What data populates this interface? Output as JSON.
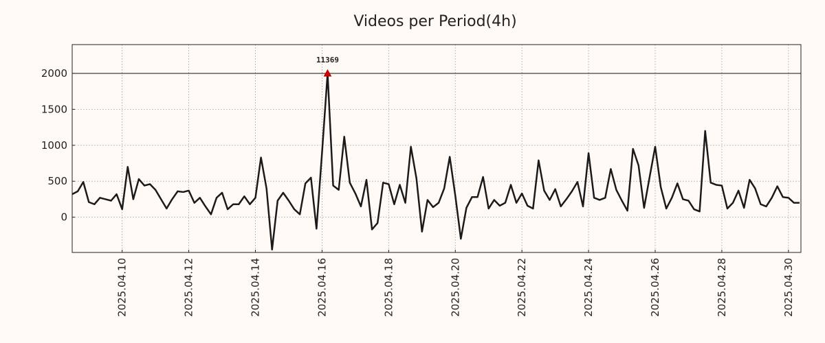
{
  "chart_data": {
    "type": "line",
    "title": "Videos per Period(4h)",
    "annotation": "11369",
    "cap_line": 2000,
    "grid": true,
    "x": [
      "2025-04-08T12:00",
      "2025-04-08T16:00",
      "2025-04-08T20:00",
      "2025-04-09T00:00",
      "2025-04-09T04:00",
      "2025-04-09T08:00",
      "2025-04-09T12:00",
      "2025-04-09T16:00",
      "2025-04-09T20:00",
      "2025-04-10T00:00",
      "2025-04-10T04:00",
      "2025-04-10T08:00",
      "2025-04-10T12:00",
      "2025-04-10T16:00",
      "2025-04-10T20:00",
      "2025-04-11T00:00",
      "2025-04-11T04:00",
      "2025-04-11T08:00",
      "2025-04-11T12:00",
      "2025-04-11T16:00",
      "2025-04-11T20:00",
      "2025-04-12T00:00",
      "2025-04-12T04:00",
      "2025-04-12T08:00",
      "2025-04-12T12:00",
      "2025-04-12T16:00",
      "2025-04-12T20:00",
      "2025-04-13T00:00",
      "2025-04-13T04:00",
      "2025-04-13T08:00",
      "2025-04-13T12:00",
      "2025-04-13T16:00",
      "2025-04-13T20:00",
      "2025-04-14T00:00",
      "2025-04-14T04:00",
      "2025-04-14T08:00",
      "2025-04-14T12:00",
      "2025-04-14T16:00",
      "2025-04-14T20:00",
      "2025-04-15T00:00",
      "2025-04-15T04:00",
      "2025-04-15T08:00",
      "2025-04-15T12:00",
      "2025-04-15T16:00",
      "2025-04-15T20:00",
      "2025-04-16T00:00",
      "2025-04-16T04:00",
      "2025-04-16T08:00",
      "2025-04-16T12:00",
      "2025-04-16T16:00",
      "2025-04-16T20:00",
      "2025-04-17T00:00",
      "2025-04-17T04:00",
      "2025-04-17T08:00",
      "2025-04-17T12:00",
      "2025-04-17T16:00",
      "2025-04-17T20:00",
      "2025-04-18T00:00",
      "2025-04-18T04:00",
      "2025-04-18T08:00",
      "2025-04-18T12:00",
      "2025-04-18T16:00",
      "2025-04-18T20:00",
      "2025-04-19T00:00",
      "2025-04-19T04:00",
      "2025-04-19T08:00",
      "2025-04-19T12:00",
      "2025-04-19T16:00",
      "2025-04-19T20:00",
      "2025-04-20T00:00",
      "2025-04-20T04:00",
      "2025-04-20T08:00",
      "2025-04-20T12:00",
      "2025-04-20T16:00",
      "2025-04-20T20:00",
      "2025-04-21T00:00",
      "2025-04-21T04:00",
      "2025-04-21T08:00",
      "2025-04-21T12:00",
      "2025-04-21T16:00",
      "2025-04-21T20:00",
      "2025-04-22T00:00",
      "2025-04-22T04:00",
      "2025-04-22T08:00",
      "2025-04-22T12:00",
      "2025-04-22T16:00",
      "2025-04-22T20:00",
      "2025-04-23T00:00",
      "2025-04-23T04:00",
      "2025-04-23T08:00",
      "2025-04-23T12:00",
      "2025-04-23T16:00",
      "2025-04-23T20:00",
      "2025-04-24T00:00",
      "2025-04-24T04:00",
      "2025-04-24T08:00",
      "2025-04-24T12:00",
      "2025-04-24T16:00",
      "2025-04-24T20:00",
      "2025-04-25T00:00",
      "2025-04-25T04:00",
      "2025-04-25T08:00",
      "2025-04-25T12:00",
      "2025-04-25T16:00",
      "2025-04-25T20:00",
      "2025-04-26T00:00",
      "2025-04-26T04:00",
      "2025-04-26T08:00",
      "2025-04-26T12:00",
      "2025-04-26T16:00",
      "2025-04-26T20:00",
      "2025-04-27T00:00",
      "2025-04-27T04:00",
      "2025-04-27T08:00",
      "2025-04-27T12:00",
      "2025-04-27T16:00",
      "2025-04-27T20:00",
      "2025-04-28T00:00",
      "2025-04-28T04:00",
      "2025-04-28T08:00",
      "2025-04-28T12:00",
      "2025-04-28T16:00",
      "2025-04-28T20:00",
      "2025-04-29T00:00",
      "2025-04-29T04:00",
      "2025-04-29T08:00",
      "2025-04-29T12:00",
      "2025-04-29T16:00",
      "2025-04-29T20:00",
      "2025-04-30T00:00",
      "2025-04-30T04:00",
      "2025-04-30T08:00"
    ],
    "series": [
      {
        "name": "Videos",
        "color": "#1a1a1a",
        "values": [
          320,
          360,
          490,
          210,
          180,
          270,
          250,
          230,
          320,
          110,
          700,
          250,
          530,
          440,
          460,
          380,
          250,
          120,
          250,
          360,
          350,
          370,
          200,
          270,
          150,
          40,
          270,
          340,
          110,
          180,
          180,
          290,
          180,
          270,
          830,
          400,
          -450,
          230,
          340,
          230,
          110,
          40,
          470,
          550,
          -160,
          900,
          2000,
          440,
          380,
          1120,
          480,
          330,
          150,
          520,
          -170,
          -80,
          480,
          460,
          180,
          450,
          200,
          980,
          540,
          -200,
          240,
          140,
          200,
          400,
          840,
          300,
          -300,
          130,
          280,
          280,
          560,
          120,
          240,
          160,
          200,
          450,
          200,
          330,
          160,
          120,
          790,
          370,
          240,
          390,
          150,
          250,
          360,
          490,
          150,
          890,
          270,
          240,
          270,
          670,
          380,
          230,
          90,
          950,
          720,
          130,
          560,
          980,
          420,
          120,
          270,
          470,
          250,
          230,
          110,
          80,
          1200,
          480,
          450,
          440,
          120,
          200,
          370,
          130,
          520,
          400,
          180,
          150,
          270,
          430,
          280,
          270,
          200,
          200
        ]
      }
    ],
    "xlim": [
      "2025-04-08T12:00",
      "2025-04-30T09:00"
    ],
    "xticks": [
      {
        "value": "2025-04-10T00:00",
        "label": "2025.04.10"
      },
      {
        "value": "2025-04-12T00:00",
        "label": "2025.04.12"
      },
      {
        "value": "2025-04-14T00:00",
        "label": "2025.04.14"
      },
      {
        "value": "2025-04-16T00:00",
        "label": "2025.04.16"
      },
      {
        "value": "2025-04-18T00:00",
        "label": "2025.04.18"
      },
      {
        "value": "2025-04-20T00:00",
        "label": "2025.04.20"
      },
      {
        "value": "2025-04-22T00:00",
        "label": "2025.04.22"
      },
      {
        "value": "2025-04-24T00:00",
        "label": "2025.04.24"
      },
      {
        "value": "2025-04-26T00:00",
        "label": "2025.04.26"
      },
      {
        "value": "2025-04-28T00:00",
        "label": "2025.04.28"
      },
      {
        "value": "2025-04-30T00:00",
        "label": "2025.04.30"
      }
    ],
    "ylim": [
      -490,
      2400
    ],
    "yticks": [
      0,
      500,
      1000,
      1500,
      2000
    ]
  }
}
